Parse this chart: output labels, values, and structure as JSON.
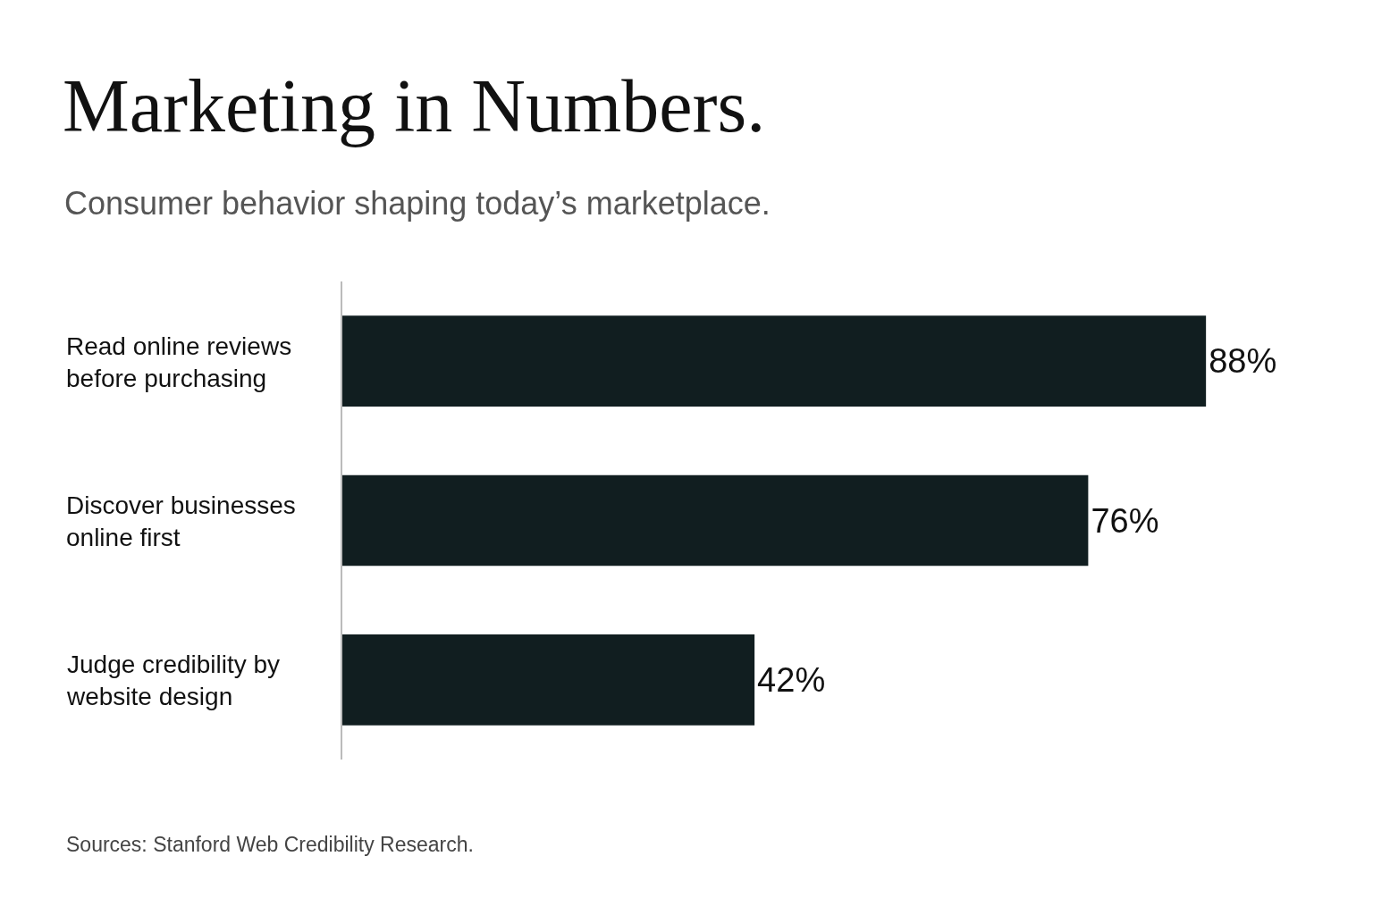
{
  "chart_data": {
    "type": "bar",
    "orientation": "horizontal",
    "title": "Marketing in Numbers.",
    "subtitle": "Consumer behavior shaping today’s marketplace.",
    "categories": [
      "Read online reviews before purchasing",
      "Discover businesses online first",
      "Judge credibility by website design"
    ],
    "values": [
      88,
      76,
      42
    ],
    "value_labels": [
      "88%",
      "76%",
      "42%"
    ],
    "color": "#111e20",
    "annotations": [
      "Sources: Stanford Web Credibility Research."
    ]
  }
}
